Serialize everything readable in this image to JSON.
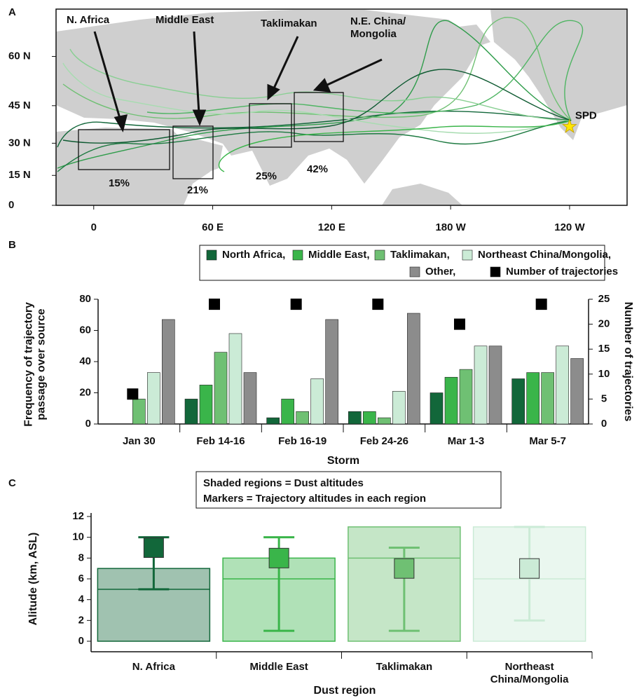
{
  "chart_data": [
    {
      "type": "map",
      "panel": "A",
      "projection": "mercator",
      "xlim": [
        -19,
        269
      ],
      "ylim": [
        0,
        70
      ],
      "xticks": [
        0,
        {
          "value": 60,
          "label": "60  E"
        },
        {
          "value": 120,
          "label": "120  E"
        },
        {
          "value": 180,
          "label": "180  W"
        },
        {
          "value": 240,
          "label": "120  W"
        }
      ],
      "yticks": [
        0,
        {
          "value": 15,
          "label": "15  N"
        },
        {
          "value": 30,
          "label": "30  N"
        },
        {
          "value": 45,
          "label": "45  N"
        },
        {
          "value": 60,
          "label": "60  N"
        }
      ],
      "categories": [
        "N. Africa",
        "Middle East",
        "Taklimakan",
        "N.E. China/ Mongolia"
      ],
      "values": [
        15,
        21,
        25,
        42
      ],
      "value_labels": [
        "15%",
        "21%",
        "25%",
        "42%"
      ],
      "site": {
        "name": "SPD",
        "lon": 240,
        "lat": 37
      },
      "color": "#cfcfcf"
    },
    {
      "type": "bar",
      "panel": "B",
      "legend": "top",
      "categories": [
        "Jan 30",
        "Feb 14-16",
        "Feb 16-19",
        "Feb 24-26",
        "Mar 1-3",
        "Mar 5-7"
      ],
      "series": [
        {
          "name": "North Africa,",
          "color": "#12673a",
          "values": [
            0,
            16,
            4,
            8,
            20,
            29
          ]
        },
        {
          "name": "Middle East,",
          "color": "#3ab54a",
          "values": [
            0,
            25,
            16,
            8,
            30,
            33
          ]
        },
        {
          "name": "Taklimakan,",
          "color": "#6fc073",
          "values": [
            16,
            46,
            8,
            4,
            35,
            33
          ]
        },
        {
          "name": "Northeast China/Mongolia,",
          "color": "#cbebd6",
          "values": [
            33,
            58,
            29,
            21,
            50,
            50
          ]
        },
        {
          "name": "Other,",
          "color": "#8c8c8c",
          "values": [
            67,
            33,
            67,
            71,
            50,
            42
          ]
        },
        {
          "name": "Number of trajectories",
          "color": "#000000",
          "axis": "y2",
          "marker": "square",
          "values": [
            6,
            24,
            24,
            24,
            20,
            24
          ]
        }
      ],
      "ylabel": "Frequency of trajectory passage over source",
      "y2label": "Number of trajectories",
      "xlabel": "Storm",
      "ylim": [
        0,
        80
      ],
      "yticks": [
        0,
        20,
        40,
        60,
        80
      ],
      "y2lim": [
        0,
        25
      ],
      "y2ticks": [
        0,
        5,
        10,
        15,
        20,
        25
      ]
    },
    {
      "type": "range",
      "panel": "C",
      "categories": [
        "N. Africa",
        "Middle East",
        "Taklimakan",
        "Northeast China/Mongolia"
      ],
      "colors": [
        "#12673a",
        "#3ab54a",
        "#6fc073",
        "#cbebd6"
      ],
      "shade_low": [
        0,
        0,
        0,
        0
      ],
      "shade_high": [
        7,
        8,
        11,
        11
      ],
      "shade_mid": [
        5,
        6,
        8,
        6
      ],
      "marker": [
        9,
        8,
        7,
        7
      ],
      "marker_low": [
        5,
        1,
        1,
        2
      ],
      "marker_high": [
        10,
        10,
        9,
        11
      ],
      "notes": [
        "Shaded regions = Dust altitudes",
        "Markers = Trajectory altitudes in each region"
      ],
      "ylabel": "Alitude (km, ASL)",
      "xlabel": "Dust region",
      "ylim": [
        0,
        12
      ],
      "yticks": [
        0,
        2,
        4,
        6,
        8,
        10,
        12
      ]
    }
  ]
}
